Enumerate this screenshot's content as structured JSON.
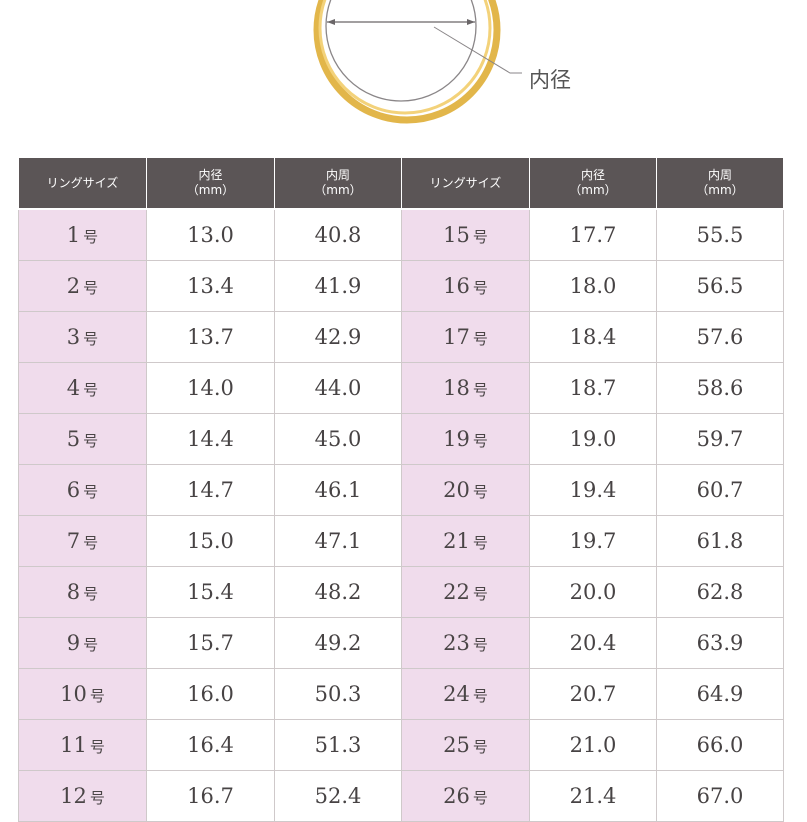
{
  "diagram": {
    "label": "内径"
  },
  "table": {
    "headers": [
      {
        "main": "リングサイズ",
        "sub": ""
      },
      {
        "main": "内径",
        "sub": "（mm）"
      },
      {
        "main": "内周",
        "sub": "（mm）"
      },
      {
        "main": "リングサイズ",
        "sub": ""
      },
      {
        "main": "内径",
        "sub": "（mm）"
      },
      {
        "main": "内周",
        "sub": "（mm）"
      }
    ],
    "unit_suffix": "号",
    "rows": [
      {
        "a": {
          "size": "1",
          "diameter": "13.0",
          "circumference": "40.8"
        },
        "b": {
          "size": "15",
          "diameter": "17.7",
          "circumference": "55.5"
        }
      },
      {
        "a": {
          "size": "2",
          "diameter": "13.4",
          "circumference": "41.9"
        },
        "b": {
          "size": "16",
          "diameter": "18.0",
          "circumference": "56.5"
        }
      },
      {
        "a": {
          "size": "3",
          "diameter": "13.7",
          "circumference": "42.9"
        },
        "b": {
          "size": "17",
          "diameter": "18.4",
          "circumference": "57.6"
        }
      },
      {
        "a": {
          "size": "4",
          "diameter": "14.0",
          "circumference": "44.0"
        },
        "b": {
          "size": "18",
          "diameter": "18.7",
          "circumference": "58.6"
        }
      },
      {
        "a": {
          "size": "5",
          "diameter": "14.4",
          "circumference": "45.0"
        },
        "b": {
          "size": "19",
          "diameter": "19.0",
          "circumference": "59.7"
        }
      },
      {
        "a": {
          "size": "6",
          "diameter": "14.7",
          "circumference": "46.1"
        },
        "b": {
          "size": "20",
          "diameter": "19.4",
          "circumference": "60.7"
        }
      },
      {
        "a": {
          "size": "7",
          "diameter": "15.0",
          "circumference": "47.1"
        },
        "b": {
          "size": "21",
          "diameter": "19.7",
          "circumference": "61.8"
        }
      },
      {
        "a": {
          "size": "8",
          "diameter": "15.4",
          "circumference": "48.2"
        },
        "b": {
          "size": "22",
          "diameter": "20.0",
          "circumference": "62.8"
        }
      },
      {
        "a": {
          "size": "9",
          "diameter": "15.7",
          "circumference": "49.2"
        },
        "b": {
          "size": "23",
          "diameter": "20.4",
          "circumference": "63.9"
        }
      },
      {
        "a": {
          "size": "10",
          "diameter": "16.0",
          "circumference": "50.3"
        },
        "b": {
          "size": "24",
          "diameter": "20.7",
          "circumference": "64.9"
        }
      },
      {
        "a": {
          "size": "11",
          "diameter": "16.4",
          "circumference": "51.3"
        },
        "b": {
          "size": "25",
          "diameter": "21.0",
          "circumference": "66.0"
        }
      },
      {
        "a": {
          "size": "12",
          "diameter": "16.7",
          "circumference": "52.4"
        },
        "b": {
          "size": "26",
          "diameter": "21.4",
          "circumference": "67.0"
        }
      }
    ]
  },
  "colors": {
    "header_bg": "#5b5556",
    "size_cell_bg": "#f0dcec",
    "ring_gold": "#e2b64a",
    "ring_inner_gold": "#f3d27a"
  }
}
